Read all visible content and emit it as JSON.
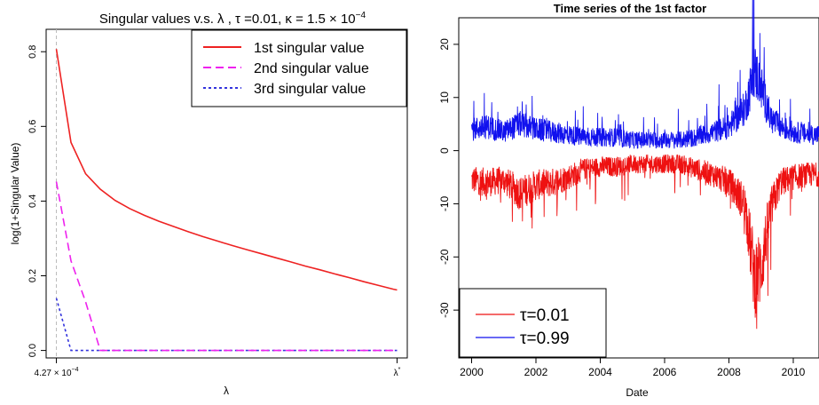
{
  "chart_data": [
    {
      "type": "line",
      "title": "Singular values v.s. λ , τ =0.01,  κ = 1.5 × 10",
      "title_superscript": "−4",
      "xlabel": "λ",
      "ylabel": "log(1+Singular Value)",
      "x_ticks": [
        {
          "label": "4.27 × 10",
          "sup": "−4",
          "x": 0
        },
        {
          "label": "λ",
          "sup": "*",
          "x": 1
        }
      ],
      "y_ticks": [
        "0.0",
        "0.2",
        "0.4",
        "0.6",
        "0.8"
      ],
      "ylim": [
        -0.02,
        0.86
      ],
      "xlim": [
        -0.03,
        1.03
      ],
      "reference_line_x": 0,
      "grid": false,
      "legend_position": "top-right",
      "x": [
        0,
        0.043,
        0.086,
        0.129,
        0.172,
        0.215,
        0.258,
        0.301,
        0.344,
        0.387,
        0.43,
        0.473,
        0.516,
        0.559,
        0.602,
        0.645,
        0.688,
        0.731,
        0.774,
        0.817,
        0.86,
        0.903,
        0.946,
        0.989,
        1.0
      ],
      "series": [
        {
          "name": "1st singular value",
          "color": "#ee2222",
          "dash": "solid",
          "values": [
            0.807,
            0.557,
            0.473,
            0.432,
            0.402,
            0.38,
            0.362,
            0.346,
            0.332,
            0.318,
            0.305,
            0.293,
            0.281,
            0.27,
            0.259,
            0.248,
            0.237,
            0.226,
            0.216,
            0.205,
            0.195,
            0.184,
            0.174,
            0.164,
            0.162
          ]
        },
        {
          "name": "2nd singular value",
          "color": "#ee22ee",
          "dash": "long",
          "values": [
            0.452,
            0.24,
            0.13,
            0.0,
            0.0,
            0.0,
            0.0,
            0.0,
            0.0,
            0.0,
            0.0,
            0.0,
            0.0,
            0.0,
            0.0,
            0.0,
            0.0,
            0.0,
            0.0,
            0.0,
            0.0,
            0.0,
            0.0,
            0.0,
            0.0
          ]
        },
        {
          "name": "3rd singular value",
          "color": "#3333dd",
          "dash": "short",
          "values": [
            0.14,
            0.0,
            0.0,
            0.0,
            0.0,
            0.0,
            0.0,
            0.0,
            0.0,
            0.0,
            0.0,
            0.0,
            0.0,
            0.0,
            0.0,
            0.0,
            0.0,
            0.0,
            0.0,
            0.0,
            0.0,
            0.0,
            0.0,
            0.0,
            0.0
          ]
        }
      ]
    },
    {
      "type": "line",
      "title": "Time series of the 1st factor",
      "xlabel": "Date",
      "ylabel": "",
      "x_ticks": [
        "2000",
        "2002",
        "2004",
        "2006",
        "2008",
        "2010"
      ],
      "y_ticks": [
        "-30",
        "-20",
        "-10",
        "0",
        "10",
        "20"
      ],
      "xlim": [
        1999.6,
        2010.8
      ],
      "ylim": [
        -39,
        25
      ],
      "grid": false,
      "legend_position": "bottom-left",
      "x": [
        2000.0,
        2000.5,
        2001.0,
        2001.5,
        2002.0,
        2002.5,
        2003.0,
        2003.5,
        2004.0,
        2004.5,
        2005.0,
        2005.5,
        2006.0,
        2006.5,
        2007.0,
        2007.5,
        2008.0,
        2008.5,
        2008.8,
        2009.0,
        2009.3,
        2009.6,
        2010.0,
        2010.5
      ],
      "series": [
        {
          "name": "τ=0.01",
          "label": "τ=0.01",
          "color": "#ee1111",
          "values": [
            -5.5,
            -6.0,
            -5.5,
            -8.0,
            -6.5,
            -6.0,
            -5.0,
            -3.5,
            -3.0,
            -3.0,
            -2.5,
            -2.5,
            -2.5,
            -2.5,
            -3.5,
            -4.5,
            -6.0,
            -10.0,
            -24.0,
            -22.0,
            -11.0,
            -6.0,
            -5.0,
            -4.5
          ]
        },
        {
          "name": "τ=0.99",
          "label": "τ=0.99",
          "color": "#1111ee",
          "values": [
            4.0,
            4.5,
            3.5,
            5.0,
            4.0,
            3.5,
            3.0,
            2.5,
            2.5,
            2.5,
            2.0,
            2.0,
            2.0,
            2.0,
            2.5,
            3.5,
            4.5,
            8.0,
            15.0,
            12.0,
            6.0,
            4.5,
            3.5,
            3.0
          ]
        }
      ]
    }
  ]
}
